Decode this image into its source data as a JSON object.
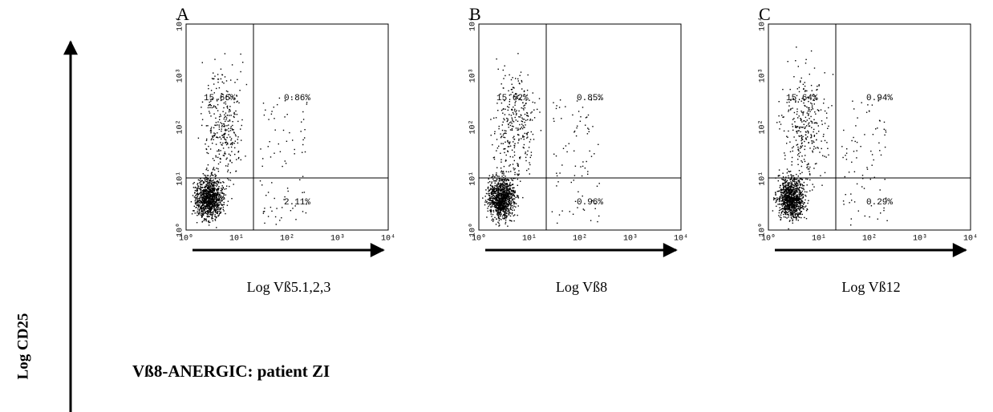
{
  "y_axis_label": "Log CD25",
  "caption": "Vß8-ANERGIC:  patient ZI",
  "ticks": [
    "10⁰",
    "10¹",
    "10²",
    "10³",
    "10⁴"
  ],
  "panels": [
    {
      "label": "A",
      "x_axis_label": "Log Vß5.1,2,3",
      "upper_left": "15.66%",
      "upper_right": "0.86%",
      "lower_right": "2.11%"
    },
    {
      "label": "B",
      "x_axis_label": "Log Vß8",
      "upper_left": "15.62%",
      "upper_right": "0.85%",
      "lower_right": "0.96%"
    },
    {
      "label": "C",
      "x_axis_label": "Log Vß12",
      "upper_left": "15.64%",
      "upper_right": "0.94%",
      "lower_right": "0.29%"
    }
  ]
}
